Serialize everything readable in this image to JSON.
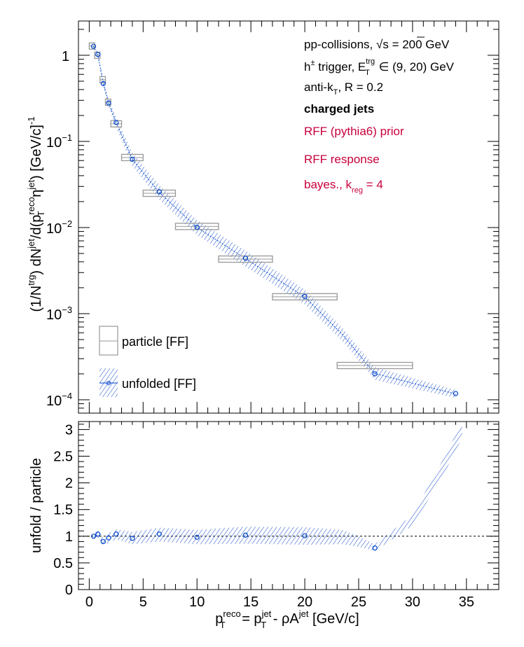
{
  "chart_data": [
    {
      "type": "scatter",
      "panel": "top",
      "yscale": "log",
      "ylim": [
        7e-05,
        2.5
      ],
      "xlim": [
        -1,
        38
      ],
      "ylabel_parts": {
        "a": "(1/N",
        "b": "trg",
        "c": ") dN",
        "d": "jet",
        "e": "/d(p",
        "f": "reco",
        "g": "T",
        "h": " η",
        "i": "jet",
        "j": ") [GeV/c]",
        "k": "-1"
      },
      "yticks": [
        {
          "v": 1,
          "base": "1",
          "exp": ""
        },
        {
          "v": 0.1,
          "base": "10",
          "exp": "−1"
        },
        {
          "v": 0.01,
          "base": "10",
          "exp": "−2"
        },
        {
          "v": 0.001,
          "base": "10",
          "exp": "−3"
        },
        {
          "v": 0.0001,
          "base": "10",
          "exp": "−4"
        }
      ],
      "info": {
        "l1a": "pp-collisions, ",
        "l1b": "√s",
        "l1c": " = 200 GeV",
        "l2a": "h",
        "l2b": "±",
        "l2c": " trigger, E",
        "l2d": "trg",
        "l2e": "T",
        "l2f": " ∈ (9, 20) GeV",
        "l3a": "anti-k",
        "l3b": "T",
        "l3c": ", R = 0.2",
        "l4": "charged jets",
        "l5": "RFF (pythia6) prior",
        "l6": "RFF response",
        "l7a": "bayes., k",
        "l7b": "reg",
        "l7c": " = 4"
      },
      "legend": {
        "particle": "particle [FF]",
        "unfolded": "unfolded [FF]"
      },
      "series": [
        {
          "name": "particle [FF]",
          "color": "#999999",
          "points": [
            {
              "x0": 0.0,
              "x1": 0.5,
              "y": 1.28
            },
            {
              "x0": 0.5,
              "x1": 1.0,
              "y": 1.0
            },
            {
              "x0": 1.0,
              "x1": 1.5,
              "y": 0.52
            },
            {
              "x0": 1.5,
              "x1": 2.0,
              "y": 0.285
            },
            {
              "x0": 2.0,
              "x1": 3.0,
              "y": 0.16
            },
            {
              "x0": 3.0,
              "x1": 5.0,
              "y": 0.065
            },
            {
              "x0": 5.0,
              "x1": 8.0,
              "y": 0.025
            },
            {
              "x0": 8.0,
              "x1": 12.0,
              "y": 0.0103
            },
            {
              "x0": 12.0,
              "x1": 17.0,
              "y": 0.0043
            },
            {
              "x0": 17.0,
              "x1": 23.0,
              "y": 0.00157
            },
            {
              "x0": 23.0,
              "x1": 30.0,
              "y": 0.00025
            }
          ]
        },
        {
          "name": "unfolded [FF]",
          "color": "#0044cc",
          "points": [
            {
              "x": 0.4,
              "y": 1.27
            },
            {
              "x": 0.8,
              "y": 1.02
            },
            {
              "x": 1.3,
              "y": 0.47
            },
            {
              "x": 1.8,
              "y": 0.28
            },
            {
              "x": 2.5,
              "y": 0.166
            },
            {
              "x": 4.0,
              "y": 0.062
            },
            {
              "x": 6.5,
              "y": 0.026
            },
            {
              "x": 10.0,
              "y": 0.0101
            },
            {
              "x": 14.5,
              "y": 0.0044
            },
            {
              "x": 20.0,
              "y": 0.00158
            },
            {
              "x": 26.5,
              "y": 0.0002
            },
            {
              "x": 34.0,
              "y": 0.000118
            }
          ],
          "band": [
            {
              "x": 0.4,
              "lo": 1.2,
              "hi": 1.34
            },
            {
              "x": 0.8,
              "lo": 0.95,
              "hi": 1.1
            },
            {
              "x": 1.3,
              "lo": 0.43,
              "hi": 0.52
            },
            {
              "x": 1.8,
              "lo": 0.25,
              "hi": 0.31
            },
            {
              "x": 2.5,
              "lo": 0.145,
              "hi": 0.19
            },
            {
              "x": 4.0,
              "lo": 0.052,
              "hi": 0.074
            },
            {
              "x": 6.5,
              "lo": 0.021,
              "hi": 0.031
            },
            {
              "x": 10.0,
              "lo": 0.0082,
              "hi": 0.0122
            },
            {
              "x": 14.5,
              "lo": 0.0035,
              "hi": 0.0054
            },
            {
              "x": 20.0,
              "lo": 0.00128,
              "hi": 0.0019
            },
            {
              "x": 23.5,
              "lo": 0.00048,
              "hi": 0.00068
            },
            {
              "x": 26.5,
              "lo": 0.00017,
              "hi": 0.00024
            },
            {
              "x": 30.0,
              "lo": 0.000135,
              "hi": 0.00018
            },
            {
              "x": 34.0,
              "lo": 0.000105,
              "hi": 0.00013
            }
          ]
        }
      ]
    },
    {
      "type": "scatter",
      "panel": "bottom",
      "ylabel": "unfold / particle",
      "xlabel_parts": {
        "a": "p",
        "b": "reco",
        "c": "T",
        "d": " = p",
        "e": "jet",
        "f": "T",
        "g": " - ρA",
        "h": "jet",
        "i": " [GeV/c]"
      },
      "xlim": [
        -1,
        38
      ],
      "ylim": [
        0,
        3.15
      ],
      "xticks": [
        "0",
        "5",
        "10",
        "15",
        "20",
        "25",
        "30",
        "35"
      ],
      "yticks": [
        "0",
        "0.5",
        "1",
        "1.5",
        "2",
        "2.5",
        "3"
      ],
      "reference_line": 1,
      "series": [
        {
          "name": "unfold / particle",
          "color": "#0044cc",
          "points": [
            {
              "x": 0.4,
              "y": 1.0
            },
            {
              "x": 0.8,
              "y": 1.04
            },
            {
              "x": 1.3,
              "y": 0.9
            },
            {
              "x": 1.8,
              "y": 0.97
            },
            {
              "x": 2.5,
              "y": 1.04
            },
            {
              "x": 4.0,
              "y": 0.96
            },
            {
              "x": 6.5,
              "y": 1.04
            },
            {
              "x": 10.0,
              "y": 0.98
            },
            {
              "x": 14.5,
              "y": 1.02
            },
            {
              "x": 20.0,
              "y": 1.01
            },
            {
              "x": 26.5,
              "y": 0.78
            }
          ],
          "band": [
            {
              "x": 0.4,
              "lo": 0.94,
              "hi": 1.06
            },
            {
              "x": 0.8,
              "lo": 0.97,
              "hi": 1.11
            },
            {
              "x": 1.3,
              "lo": 0.82,
              "hi": 0.98
            },
            {
              "x": 1.8,
              "lo": 0.88,
              "hi": 1.06
            },
            {
              "x": 2.5,
              "lo": 0.94,
              "hi": 1.13
            },
            {
              "x": 4.0,
              "lo": 0.85,
              "hi": 1.08
            },
            {
              "x": 6.5,
              "lo": 0.9,
              "hi": 1.16
            },
            {
              "x": 10.0,
              "lo": 0.85,
              "hi": 1.12
            },
            {
              "x": 14.5,
              "lo": 0.86,
              "hi": 1.18
            },
            {
              "x": 20.0,
              "lo": 0.84,
              "hi": 1.17
            },
            {
              "x": 23.5,
              "lo": 0.85,
              "hi": 1.12
            },
            {
              "x": 25.0,
              "lo": 0.8,
              "hi": 1.0
            },
            {
              "x": 26.5,
              "lo": 0.72,
              "hi": 0.85
            },
            {
              "x": 30.0,
              "lo": 1.2,
              "hi": 1.4
            },
            {
              "x": 33.0,
              "lo": 2.2,
              "hi": 2.5
            },
            {
              "x": 34.6,
              "lo": 2.85,
              "hi": 3.15
            }
          ]
        }
      ]
    }
  ]
}
